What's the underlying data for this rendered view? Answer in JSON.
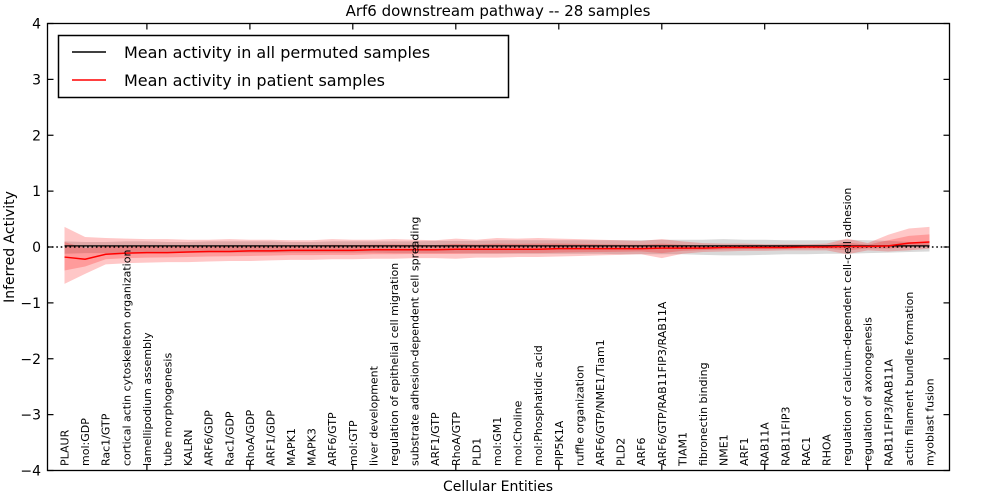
{
  "chart_data": {
    "type": "line",
    "title": "Arf6 downstream pathway -- 28 samples",
    "xlabel": "Cellular Entities",
    "ylabel": "Inferred Activity",
    "ylim": [
      -4,
      4
    ],
    "y_tick_step": 1,
    "x_major_tick_indices": [
      4,
      9,
      14,
      19,
      24,
      29,
      34,
      39
    ],
    "grid": false,
    "legend_position": "upper-left",
    "zero_line": {
      "value": 0,
      "style": "dotted",
      "color": "#000000"
    },
    "colors": {
      "permuted_line": "#000000",
      "patient_line": "#ff0000",
      "permuted_band": "#aaaaaa",
      "patient_band": "#ff0000",
      "background": "#ffffff"
    },
    "categories": [
      "PLAUR",
      "mol:GDP",
      "Rac1/GTP",
      "cortical actin cytoskeleton organization",
      "lamellipodium assembly",
      "tube morphogenesis",
      "KALRN",
      "ARF6/GDP",
      "Rac1/GDP",
      "RhoA/GDP",
      "ARF1/GDP",
      "MAPK1",
      "MAPK3",
      "ARF6/GTP",
      "mol:GTP",
      "liver development",
      "regulation of epithelial cell migration",
      "substrate adhesion-dependent cell spreading",
      "ARF1/GTP",
      "RhoA/GTP",
      "PLD1",
      "mol:GM1",
      "mol:Choline",
      "mol:Phosphatidic acid",
      "PIP5K1A",
      "ruffle organization",
      "ARF6/GTP/NME1/Tiam1",
      "PLD2",
      "ARF6",
      "ARF6/GTP/RAB11FIP3/RAB11A",
      "TIAM1",
      "fibronectin binding",
      "NME1",
      "ARF1",
      "RAB11A",
      "RAB11FIP3",
      "RAC1",
      "RHOA",
      "regulation of calcium-dependent cell-cell adhesion",
      "regulation of axonogenesis",
      "RAB11FIP3/RAB11A",
      "actin filament bundle formation",
      "myoblast fusion"
    ],
    "series": [
      {
        "name": "Mean activity in all permuted samples",
        "color": "#000000",
        "values": [
          0.02,
          0.02,
          0.02,
          0.02,
          0.02,
          0.02,
          0.02,
          0.02,
          0.02,
          0.02,
          0.02,
          0.02,
          0.02,
          0.02,
          0.02,
          0.02,
          0.02,
          0.02,
          0.02,
          0.02,
          0.02,
          0.02,
          0.02,
          0.02,
          0.02,
          0.02,
          0.02,
          0.02,
          0.02,
          0.02,
          0.02,
          0.02,
          0.02,
          0.02,
          0.02,
          0.02,
          0.02,
          0.02,
          0.02,
          0.02,
          0.02,
          0.02,
          0.02
        ]
      },
      {
        "name": "Mean activity in patient samples",
        "color": "#ff0000",
        "values": [
          -0.18,
          -0.22,
          -0.13,
          -0.11,
          -0.1,
          -0.1,
          -0.09,
          -0.08,
          -0.08,
          -0.07,
          -0.07,
          -0.06,
          -0.06,
          -0.06,
          -0.06,
          -0.05,
          -0.05,
          -0.05,
          -0.05,
          -0.04,
          -0.04,
          -0.04,
          -0.04,
          -0.04,
          -0.03,
          -0.03,
          -0.03,
          -0.03,
          -0.03,
          -0.02,
          -0.02,
          -0.02,
          -0.01,
          -0.01,
          -0.01,
          -0.01,
          0.0,
          0.0,
          0.01,
          0.01,
          0.02,
          0.07,
          0.09
        ]
      }
    ],
    "bands": [
      {
        "name": "permuted-band",
        "color": "#aaaaaa",
        "upper": [
          0.1,
          0.09,
          0.09,
          0.1,
          0.1,
          0.09,
          0.09,
          0.1,
          0.1,
          0.1,
          0.1,
          0.09,
          0.09,
          0.1,
          0.1,
          0.1,
          0.1,
          0.1,
          0.11,
          0.11,
          0.11,
          0.12,
          0.12,
          0.12,
          0.12,
          0.12,
          0.12,
          0.12,
          0.12,
          0.13,
          0.13,
          0.13,
          0.14,
          0.13,
          0.13,
          0.12,
          0.12,
          0.12,
          0.13,
          0.12,
          0.11,
          0.09,
          0.08
        ],
        "lower": [
          -0.12,
          -0.11,
          -0.11,
          -0.11,
          -0.11,
          -0.1,
          -0.1,
          -0.1,
          -0.1,
          -0.1,
          -0.1,
          -0.1,
          -0.1,
          -0.1,
          -0.1,
          -0.1,
          -0.11,
          -0.11,
          -0.11,
          -0.11,
          -0.12,
          -0.12,
          -0.12,
          -0.12,
          -0.12,
          -0.12,
          -0.12,
          -0.13,
          -0.13,
          -0.13,
          -0.13,
          -0.14,
          -0.15,
          -0.15,
          -0.14,
          -0.13,
          -0.13,
          -0.12,
          -0.12,
          -0.11,
          -0.1,
          -0.09,
          -0.08
        ]
      },
      {
        "name": "patient-band",
        "color": "#ff0000",
        "upper": [
          0.36,
          0.18,
          0.16,
          0.15,
          0.14,
          0.14,
          0.13,
          0.13,
          0.14,
          0.13,
          0.13,
          0.12,
          0.12,
          0.14,
          0.13,
          0.13,
          0.14,
          0.13,
          0.12,
          0.15,
          0.13,
          0.16,
          0.15,
          0.16,
          0.15,
          0.14,
          0.13,
          0.12,
          0.11,
          0.14,
          0.1,
          0.07,
          0.06,
          0.06,
          0.05,
          0.05,
          0.05,
          0.06,
          0.15,
          0.07,
          0.22,
          0.33,
          0.36
        ],
        "lower": [
          -0.66,
          -0.48,
          -0.31,
          -0.29,
          -0.28,
          -0.27,
          -0.27,
          -0.26,
          -0.25,
          -0.25,
          -0.24,
          -0.23,
          -0.23,
          -0.22,
          -0.22,
          -0.21,
          -0.21,
          -0.2,
          -0.2,
          -0.21,
          -0.19,
          -0.19,
          -0.18,
          -0.18,
          -0.17,
          -0.16,
          -0.15,
          -0.14,
          -0.13,
          -0.2,
          -0.12,
          -0.09,
          -0.08,
          -0.07,
          -0.07,
          -0.06,
          -0.06,
          -0.06,
          -0.13,
          -0.06,
          -0.08,
          -0.06,
          -0.03
        ]
      }
    ]
  }
}
